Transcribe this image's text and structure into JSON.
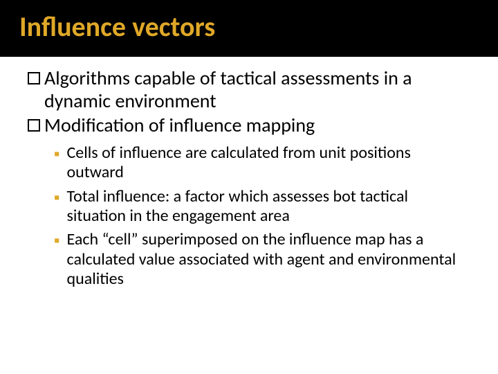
{
  "slide": {
    "title": "Influence vectors",
    "title_color": "#e0a828",
    "title_fontsize": 40,
    "header_bg": "#000000",
    "body_text_color": "#000000",
    "body_fontsize_top": 28,
    "body_fontsize_sub": 24,
    "sub_bullet_color": "#e0a828",
    "top_items": [
      "Algorithms capable of tactical assessments in a dynamic environment",
      "Modification of influence mapping"
    ],
    "sub_items": [
      "Cells of influence are calculated from unit positions outward",
      "Total influence: a factor which assesses bot tactical situation in the engagement area",
      "Each “cell” superimposed on the influence map has a calculated value associated with agent and environmental qualities"
    ]
  }
}
